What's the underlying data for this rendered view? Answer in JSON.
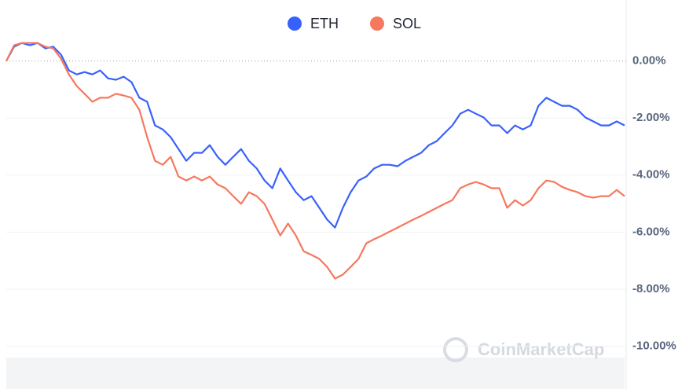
{
  "chart_data": {
    "type": "line",
    "series": [
      {
        "name": "ETH",
        "color": "#3861fb",
        "values": [
          0,
          0.5,
          0.63,
          0.55,
          0.63,
          0.44,
          0.5,
          0.22,
          -0.33,
          -0.47,
          -0.39,
          -0.47,
          -0.33,
          -0.61,
          -0.66,
          -0.55,
          -0.74,
          -1.29,
          -1.43,
          -2.26,
          -2.4,
          -2.67,
          -3.09,
          -3.5,
          -3.22,
          -3.22,
          -2.95,
          -3.36,
          -3.64,
          -3.36,
          -3.09,
          -3.5,
          -3.77,
          -4.19,
          -4.46,
          -3.77,
          -4.19,
          -4.6,
          -4.88,
          -4.74,
          -5.15,
          -5.56,
          -5.84,
          -5.15,
          -4.6,
          -4.19,
          -4.05,
          -3.77,
          -3.64,
          -3.64,
          -3.69,
          -3.5,
          -3.36,
          -3.22,
          -2.95,
          -2.81,
          -2.53,
          -2.26,
          -1.85,
          -1.71,
          -1.85,
          -1.98,
          -2.26,
          -2.26,
          -2.53,
          -2.26,
          -2.4,
          -2.26,
          -1.57,
          -1.29,
          -1.43,
          -1.57,
          -1.57,
          -1.71,
          -1.98,
          -2.12,
          -2.26,
          -2.26,
          -2.12,
          -2.26
        ]
      },
      {
        "name": "SOL",
        "color": "#f6785d",
        "values": [
          0,
          0.55,
          0.63,
          0.63,
          0.63,
          0.5,
          0.44,
          0.08,
          -0.47,
          -0.88,
          -1.15,
          -1.43,
          -1.29,
          -1.29,
          -1.15,
          -1.21,
          -1.29,
          -1.71,
          -2.67,
          -3.5,
          -3.64,
          -3.36,
          -4.05,
          -4.19,
          -4.05,
          -4.19,
          -4.05,
          -4.33,
          -4.46,
          -4.74,
          -5.01,
          -4.6,
          -4.74,
          -5.01,
          -5.56,
          -6.12,
          -5.7,
          -6.12,
          -6.67,
          -6.8,
          -6.94,
          -7.22,
          -7.63,
          -7.49,
          -7.22,
          -6.94,
          -6.39,
          -6.25,
          -6.12,
          -5.98,
          -5.84,
          -5.7,
          -5.56,
          -5.43,
          -5.29,
          -5.15,
          -5.01,
          -4.88,
          -4.46,
          -4.33,
          -4.24,
          -4.33,
          -4.46,
          -4.46,
          -5.15,
          -4.88,
          -5.07,
          -4.88,
          -4.46,
          -4.19,
          -4.24,
          -4.41,
          -4.52,
          -4.6,
          -4.74,
          -4.79,
          -4.74,
          -4.74,
          -4.52,
          -4.74
        ]
      }
    ],
    "ylim": [
      -11.5,
      2
    ],
    "yticks": [
      {
        "value": 0,
        "label": "0.00%"
      },
      {
        "value": -2,
        "label": "-2.00%"
      },
      {
        "value": -4,
        "label": "-4.00%"
      },
      {
        "value": -6,
        "label": "-6.00%"
      },
      {
        "value": -8,
        "label": "-8.00%"
      },
      {
        "value": -10,
        "label": "-10.00%"
      }
    ],
    "grid": true,
    "legend": "top",
    "watermark": "CoinMarketCap"
  }
}
